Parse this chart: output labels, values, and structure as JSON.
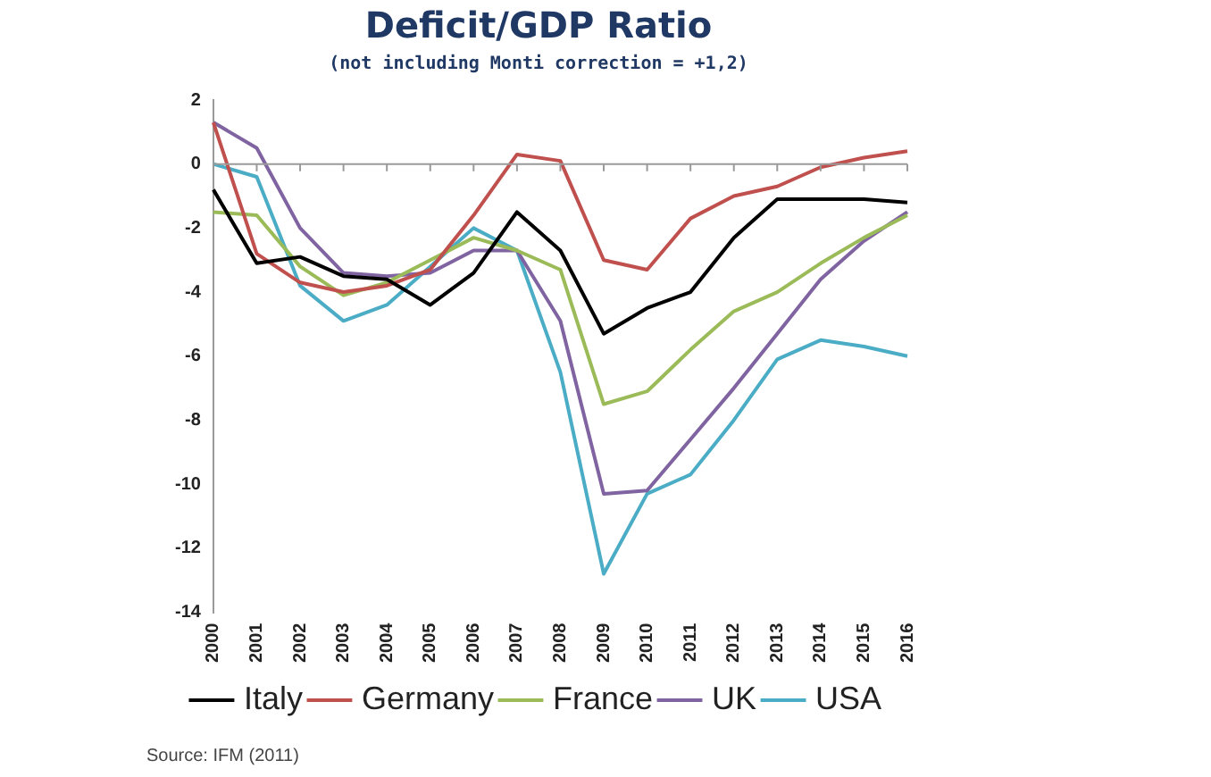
{
  "chart_data": {
    "type": "line",
    "title": "Deficit/GDP Ratio",
    "subtitle": "(not including Monti correction = +1,2)",
    "categories": [
      "2000",
      "2001",
      "2002",
      "2003",
      "2004",
      "2005",
      "2006",
      "2007",
      "2008",
      "2009",
      "2010",
      "2011",
      "2012",
      "2013",
      "2014",
      "2015",
      "2016"
    ],
    "series": [
      {
        "name": "Italy",
        "color": "#000000",
        "values": [
          -0.8,
          -3.1,
          -2.9,
          -3.5,
          -3.6,
          -4.4,
          -3.4,
          -1.5,
          -2.7,
          -5.3,
          -4.5,
          -4.0,
          -2.3,
          -1.1,
          -1.1,
          -1.1,
          -1.2
        ]
      },
      {
        "name": "Germany",
        "color": "#c0504d",
        "values": [
          1.3,
          -2.8,
          -3.7,
          -4.0,
          -3.8,
          -3.3,
          -1.6,
          0.3,
          0.1,
          -3.0,
          -3.3,
          -1.7,
          -1.0,
          -0.7,
          -0.1,
          0.2,
          0.4
        ]
      },
      {
        "name": "France",
        "color": "#9bbb59",
        "values": [
          -1.5,
          -1.6,
          -3.2,
          -4.1,
          -3.7,
          -3.0,
          -2.3,
          -2.7,
          -3.3,
          -7.5,
          -7.1,
          -5.8,
          -4.6,
          -4.0,
          -3.1,
          -2.3,
          -1.6
        ]
      },
      {
        "name": "UK",
        "color": "#8064a2",
        "values": [
          1.3,
          0.5,
          -2.0,
          -3.4,
          -3.5,
          -3.4,
          -2.7,
          -2.7,
          -4.9,
          -10.3,
          -10.2,
          -8.6,
          -7.0,
          -5.3,
          -3.6,
          -2.4,
          -1.5
        ]
      },
      {
        "name": "USA",
        "color": "#4bacc6",
        "values": [
          0.0,
          -0.4,
          -3.8,
          -4.9,
          -4.4,
          -3.2,
          -2.0,
          -2.7,
          -6.5,
          -12.8,
          -10.3,
          -9.7,
          -8.0,
          -6.1,
          -5.5,
          -5.7,
          -6.0
        ]
      }
    ],
    "ylim": [
      -14,
      2
    ],
    "yticks": [
      -14,
      -12,
      -10,
      -8,
      -6,
      -4,
      -2,
      0,
      2
    ],
    "ref_lines": [
      {
        "axis": "y",
        "value": 0
      }
    ],
    "grid": false,
    "legend": "bottom",
    "marker": "none",
    "line_style": "solid",
    "annotations": [
      "Source: IFM (2011)"
    ]
  }
}
